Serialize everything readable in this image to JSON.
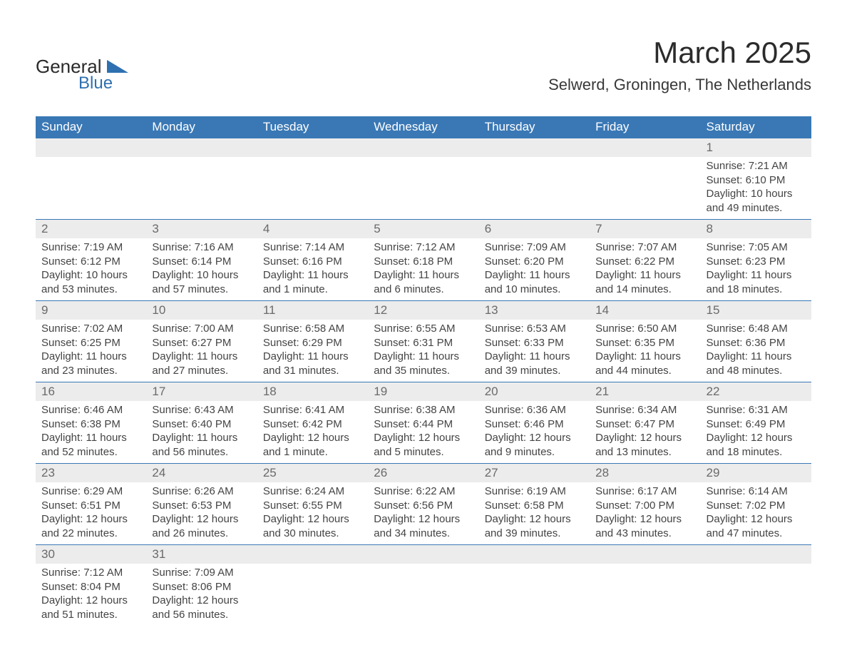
{
  "brand": {
    "name_main": "General",
    "name_sub": "Blue",
    "colors": {
      "dark": "#2a2a2a",
      "blue": "#2e70b0"
    }
  },
  "header": {
    "title": "March 2025",
    "location": "Selwerd, Groningen, The Netherlands"
  },
  "style": {
    "header_bg": "#3a78b5",
    "header_fg": "#ffffff",
    "daynum_bg": "#ececec",
    "daynum_fg": "#6a6a6a",
    "divider": "#3a78b5",
    "body_fg": "#444444",
    "page_bg": "#ffffff",
    "title_fontsize": 42,
    "location_fontsize": 22,
    "header_fontsize": 17,
    "daynum_fontsize": 17,
    "cell_fontsize": 15
  },
  "weekdays": [
    "Sunday",
    "Monday",
    "Tuesday",
    "Wednesday",
    "Thursday",
    "Friday",
    "Saturday"
  ],
  "labels": {
    "sunrise": "Sunrise:",
    "sunset": "Sunset:",
    "daylight": "Daylight:"
  },
  "weeks": [
    {
      "days": [
        null,
        null,
        null,
        null,
        null,
        null,
        {
          "n": "1",
          "sunrise": "7:21 AM",
          "sunset": "6:10 PM",
          "daylight": "10 hours and 49 minutes."
        }
      ]
    },
    {
      "days": [
        {
          "n": "2",
          "sunrise": "7:19 AM",
          "sunset": "6:12 PM",
          "daylight": "10 hours and 53 minutes."
        },
        {
          "n": "3",
          "sunrise": "7:16 AM",
          "sunset": "6:14 PM",
          "daylight": "10 hours and 57 minutes."
        },
        {
          "n": "4",
          "sunrise": "7:14 AM",
          "sunset": "6:16 PM",
          "daylight": "11 hours and 1 minute."
        },
        {
          "n": "5",
          "sunrise": "7:12 AM",
          "sunset": "6:18 PM",
          "daylight": "11 hours and 6 minutes."
        },
        {
          "n": "6",
          "sunrise": "7:09 AM",
          "sunset": "6:20 PM",
          "daylight": "11 hours and 10 minutes."
        },
        {
          "n": "7",
          "sunrise": "7:07 AM",
          "sunset": "6:22 PM",
          "daylight": "11 hours and 14 minutes."
        },
        {
          "n": "8",
          "sunrise": "7:05 AM",
          "sunset": "6:23 PM",
          "daylight": "11 hours and 18 minutes."
        }
      ]
    },
    {
      "days": [
        {
          "n": "9",
          "sunrise": "7:02 AM",
          "sunset": "6:25 PM",
          "daylight": "11 hours and 23 minutes."
        },
        {
          "n": "10",
          "sunrise": "7:00 AM",
          "sunset": "6:27 PM",
          "daylight": "11 hours and 27 minutes."
        },
        {
          "n": "11",
          "sunrise": "6:58 AM",
          "sunset": "6:29 PM",
          "daylight": "11 hours and 31 minutes."
        },
        {
          "n": "12",
          "sunrise": "6:55 AM",
          "sunset": "6:31 PM",
          "daylight": "11 hours and 35 minutes."
        },
        {
          "n": "13",
          "sunrise": "6:53 AM",
          "sunset": "6:33 PM",
          "daylight": "11 hours and 39 minutes."
        },
        {
          "n": "14",
          "sunrise": "6:50 AM",
          "sunset": "6:35 PM",
          "daylight": "11 hours and 44 minutes."
        },
        {
          "n": "15",
          "sunrise": "6:48 AM",
          "sunset": "6:36 PM",
          "daylight": "11 hours and 48 minutes."
        }
      ]
    },
    {
      "days": [
        {
          "n": "16",
          "sunrise": "6:46 AM",
          "sunset": "6:38 PM",
          "daylight": "11 hours and 52 minutes."
        },
        {
          "n": "17",
          "sunrise": "6:43 AM",
          "sunset": "6:40 PM",
          "daylight": "11 hours and 56 minutes."
        },
        {
          "n": "18",
          "sunrise": "6:41 AM",
          "sunset": "6:42 PM",
          "daylight": "12 hours and 1 minute."
        },
        {
          "n": "19",
          "sunrise": "6:38 AM",
          "sunset": "6:44 PM",
          "daylight": "12 hours and 5 minutes."
        },
        {
          "n": "20",
          "sunrise": "6:36 AM",
          "sunset": "6:46 PM",
          "daylight": "12 hours and 9 minutes."
        },
        {
          "n": "21",
          "sunrise": "6:34 AM",
          "sunset": "6:47 PM",
          "daylight": "12 hours and 13 minutes."
        },
        {
          "n": "22",
          "sunrise": "6:31 AM",
          "sunset": "6:49 PM",
          "daylight": "12 hours and 18 minutes."
        }
      ]
    },
    {
      "days": [
        {
          "n": "23",
          "sunrise": "6:29 AM",
          "sunset": "6:51 PM",
          "daylight": "12 hours and 22 minutes."
        },
        {
          "n": "24",
          "sunrise": "6:26 AM",
          "sunset": "6:53 PM",
          "daylight": "12 hours and 26 minutes."
        },
        {
          "n": "25",
          "sunrise": "6:24 AM",
          "sunset": "6:55 PM",
          "daylight": "12 hours and 30 minutes."
        },
        {
          "n": "26",
          "sunrise": "6:22 AM",
          "sunset": "6:56 PM",
          "daylight": "12 hours and 34 minutes."
        },
        {
          "n": "27",
          "sunrise": "6:19 AM",
          "sunset": "6:58 PM",
          "daylight": "12 hours and 39 minutes."
        },
        {
          "n": "28",
          "sunrise": "6:17 AM",
          "sunset": "7:00 PM",
          "daylight": "12 hours and 43 minutes."
        },
        {
          "n": "29",
          "sunrise": "6:14 AM",
          "sunset": "7:02 PM",
          "daylight": "12 hours and 47 minutes."
        }
      ]
    },
    {
      "days": [
        {
          "n": "30",
          "sunrise": "7:12 AM",
          "sunset": "8:04 PM",
          "daylight": "12 hours and 51 minutes."
        },
        {
          "n": "31",
          "sunrise": "7:09 AM",
          "sunset": "8:06 PM",
          "daylight": "12 hours and 56 minutes."
        },
        null,
        null,
        null,
        null,
        null
      ]
    }
  ]
}
